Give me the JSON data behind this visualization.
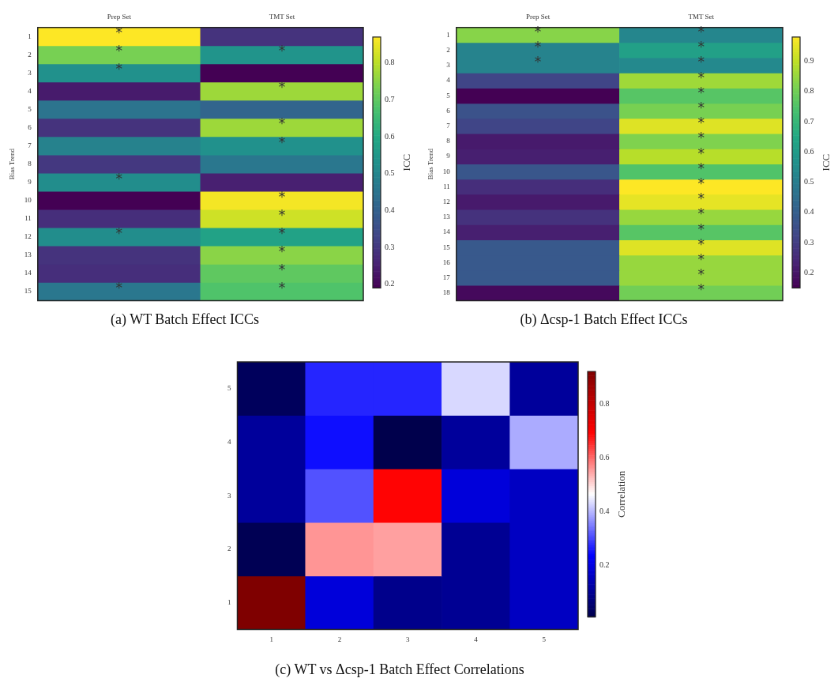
{
  "chart_data": [
    {
      "type": "heatmap",
      "title": "(a) WT Batch Effect ICCs",
      "ylabel": "Bias Trend",
      "clabel": "ICC",
      "categories": [
        "Prep Set",
        "TMT Set"
      ],
      "y_categories": [
        "1",
        "2",
        "3",
        "4",
        "5",
        "6",
        "7",
        "8",
        "9",
        "10",
        "11",
        "12",
        "13",
        "14",
        "15"
      ],
      "cells": [
        [
          0.87,
          0.29
        ],
        [
          0.73,
          0.54
        ],
        [
          0.53,
          0.19
        ],
        [
          0.24,
          0.77
        ],
        [
          0.45,
          0.41
        ],
        [
          0.29,
          0.77
        ],
        [
          0.49,
          0.53
        ],
        [
          0.3,
          0.46
        ],
        [
          0.52,
          0.25
        ],
        [
          0.19,
          0.86
        ],
        [
          0.28,
          0.82
        ],
        [
          0.52,
          0.58
        ],
        [
          0.29,
          0.75
        ],
        [
          0.28,
          0.7
        ],
        [
          0.46,
          0.68
        ]
      ],
      "cell_labels": [
        [
          "*",
          null
        ],
        [
          "*",
          "*"
        ],
        [
          "*",
          null
        ],
        [
          null,
          "*"
        ],
        [
          null,
          null
        ],
        [
          null,
          "*"
        ],
        [
          null,
          "*"
        ],
        [
          null,
          null
        ],
        [
          "*",
          null
        ],
        [
          null,
          "*"
        ],
        [
          null,
          "*"
        ],
        [
          "*",
          "*"
        ],
        [
          null,
          "*"
        ],
        [
          null,
          "*"
        ],
        [
          "*",
          "*"
        ]
      ],
      "clim": [
        0.19,
        0.87
      ],
      "cticks": [
        0.2,
        0.3,
        0.4,
        0.5,
        0.6,
        0.7,
        0.8
      ]
    },
    {
      "type": "heatmap",
      "title": "(b) Δcsp-1 Batch Effect ICCs",
      "ylabel": "Bias Trend",
      "clabel": "ICC",
      "categories": [
        "Prep Set",
        "TMT Set"
      ],
      "y_categories": [
        "1",
        "2",
        "3",
        "4",
        "5",
        "6",
        "7",
        "8",
        "9",
        "10",
        "11",
        "12",
        "13",
        "14",
        "15",
        "16",
        "17",
        "18"
      ],
      "cells": [
        [
          0.83,
          0.53
        ],
        [
          0.52,
          0.62
        ],
        [
          0.52,
          0.54
        ],
        [
          0.32,
          0.86
        ],
        [
          0.15,
          0.76
        ],
        [
          0.36,
          0.81
        ],
        [
          0.32,
          0.94
        ],
        [
          0.21,
          0.82
        ],
        [
          0.22,
          0.89
        ],
        [
          0.37,
          0.75
        ],
        [
          0.26,
          0.98
        ],
        [
          0.21,
          0.95
        ],
        [
          0.27,
          0.85
        ],
        [
          0.22,
          0.76
        ],
        [
          0.38,
          0.94
        ],
        [
          0.38,
          0.85
        ],
        [
          0.38,
          0.85
        ],
        [
          0.17,
          0.8
        ]
      ],
      "cell_labels": [
        [
          "*",
          "*"
        ],
        [
          "*",
          "*"
        ],
        [
          "*",
          "*"
        ],
        [
          null,
          "*"
        ],
        [
          null,
          "*"
        ],
        [
          null,
          "*"
        ],
        [
          null,
          "*"
        ],
        [
          null,
          "*"
        ],
        [
          null,
          "*"
        ],
        [
          null,
          "*"
        ],
        [
          null,
          "*"
        ],
        [
          null,
          "*"
        ],
        [
          null,
          "*"
        ],
        [
          null,
          "*"
        ],
        [
          null,
          "*"
        ],
        [
          null,
          "*"
        ],
        [
          null,
          "*"
        ],
        [
          null,
          "*"
        ]
      ],
      "clim": [
        0.15,
        0.98
      ],
      "cticks": [
        0.2,
        0.3,
        0.4,
        0.5,
        0.6,
        0.7,
        0.8,
        0.9
      ]
    },
    {
      "type": "heatmap",
      "title": "(c) WT vs Δcsp-1 Batch Effect Correlations",
      "clabel": "Correlation",
      "categories": [
        "1",
        "2",
        "3",
        "4",
        "5"
      ],
      "y_categories": [
        "5",
        "4",
        "3",
        "2",
        "1"
      ],
      "cells": [
        [
          0.03,
          0.27,
          0.27,
          0.43,
          0.11
        ],
        [
          0.11,
          0.25,
          0.01,
          0.11,
          0.39
        ],
        [
          0.11,
          0.31,
          0.69,
          0.19,
          0.16
        ],
        [
          0.02,
          0.56,
          0.55,
          0.1,
          0.16
        ],
        [
          0.92,
          0.19,
          0.09,
          0.1,
          0.16
        ]
      ],
      "clim": [
        0.01,
        0.92
      ],
      "cticks": [
        0.2,
        0.4,
        0.6,
        0.8
      ]
    }
  ]
}
